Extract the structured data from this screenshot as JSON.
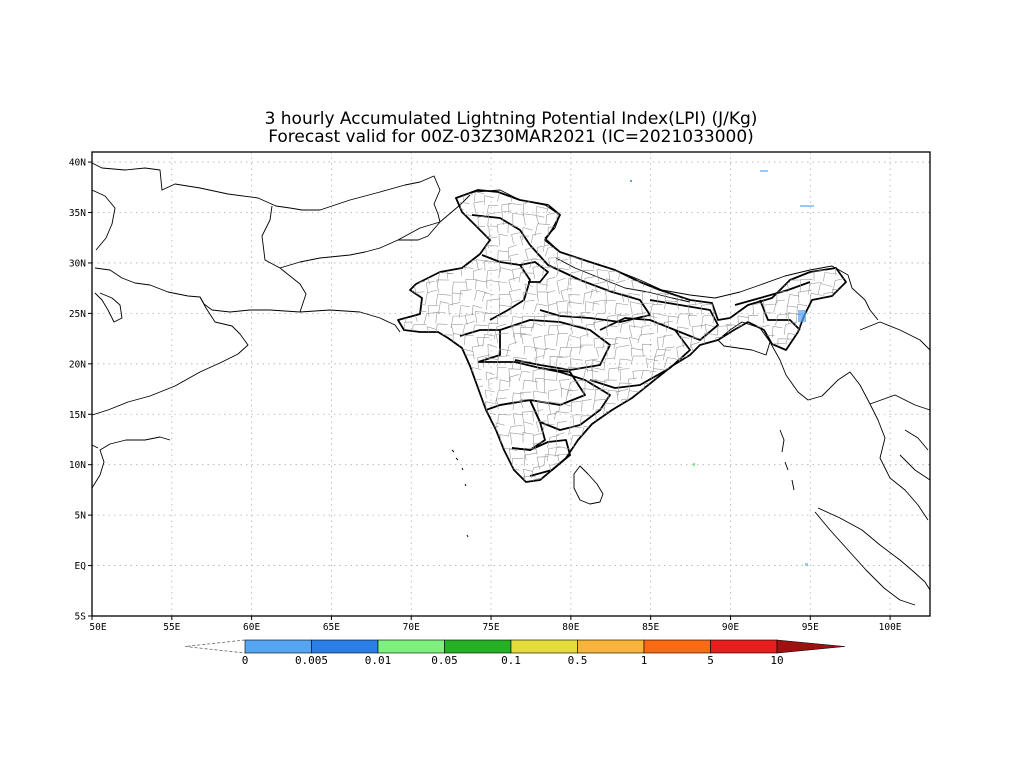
{
  "title": {
    "line1": "3 hourly Accumulated Lightning Potential Index(LPI) (J/Kg)",
    "line2": "Forecast valid for 00Z-03Z30MAR2021 (IC=2021033000)"
  },
  "map": {
    "lon_range": [
      50,
      102.5
    ],
    "lat_range": [
      -5,
      41
    ],
    "lon_ticks": [
      {
        "value": 50,
        "label": "50E"
      },
      {
        "value": 55,
        "label": "55E"
      },
      {
        "value": 60,
        "label": "60E"
      },
      {
        "value": 65,
        "label": "65E"
      },
      {
        "value": 70,
        "label": "70E"
      },
      {
        "value": 75,
        "label": "75E"
      },
      {
        "value": 80,
        "label": "80E"
      },
      {
        "value": 85,
        "label": "85E"
      },
      {
        "value": 90,
        "label": "90E"
      },
      {
        "value": 95,
        "label": "95E"
      },
      {
        "value": 100,
        "label": "100E"
      }
    ],
    "lat_ticks": [
      {
        "value": 40,
        "label": "40N"
      },
      {
        "value": 35,
        "label": "35N"
      },
      {
        "value": 30,
        "label": "30N"
      },
      {
        "value": 25,
        "label": "25N"
      },
      {
        "value": 20,
        "label": "20N"
      },
      {
        "value": 15,
        "label": "15N"
      },
      {
        "value": 10,
        "label": "10N"
      },
      {
        "value": 5,
        "label": "5N"
      },
      {
        "value": 0,
        "label": "EQ"
      },
      {
        "value": -5,
        "label": "5S"
      }
    ],
    "grid": "dotted"
  },
  "colorbar": {
    "colors": [
      "#55a5f0",
      "#2a7ee6",
      "#7ef07e",
      "#26b026",
      "#e6dc3a",
      "#fab43c",
      "#fa6a10",
      "#e81e1e",
      "#a01010"
    ],
    "labels": [
      "0",
      "0.005",
      "0.01",
      "0.05",
      "0.1",
      "0.5",
      "1",
      "5",
      "10"
    ],
    "extend": "both"
  }
}
